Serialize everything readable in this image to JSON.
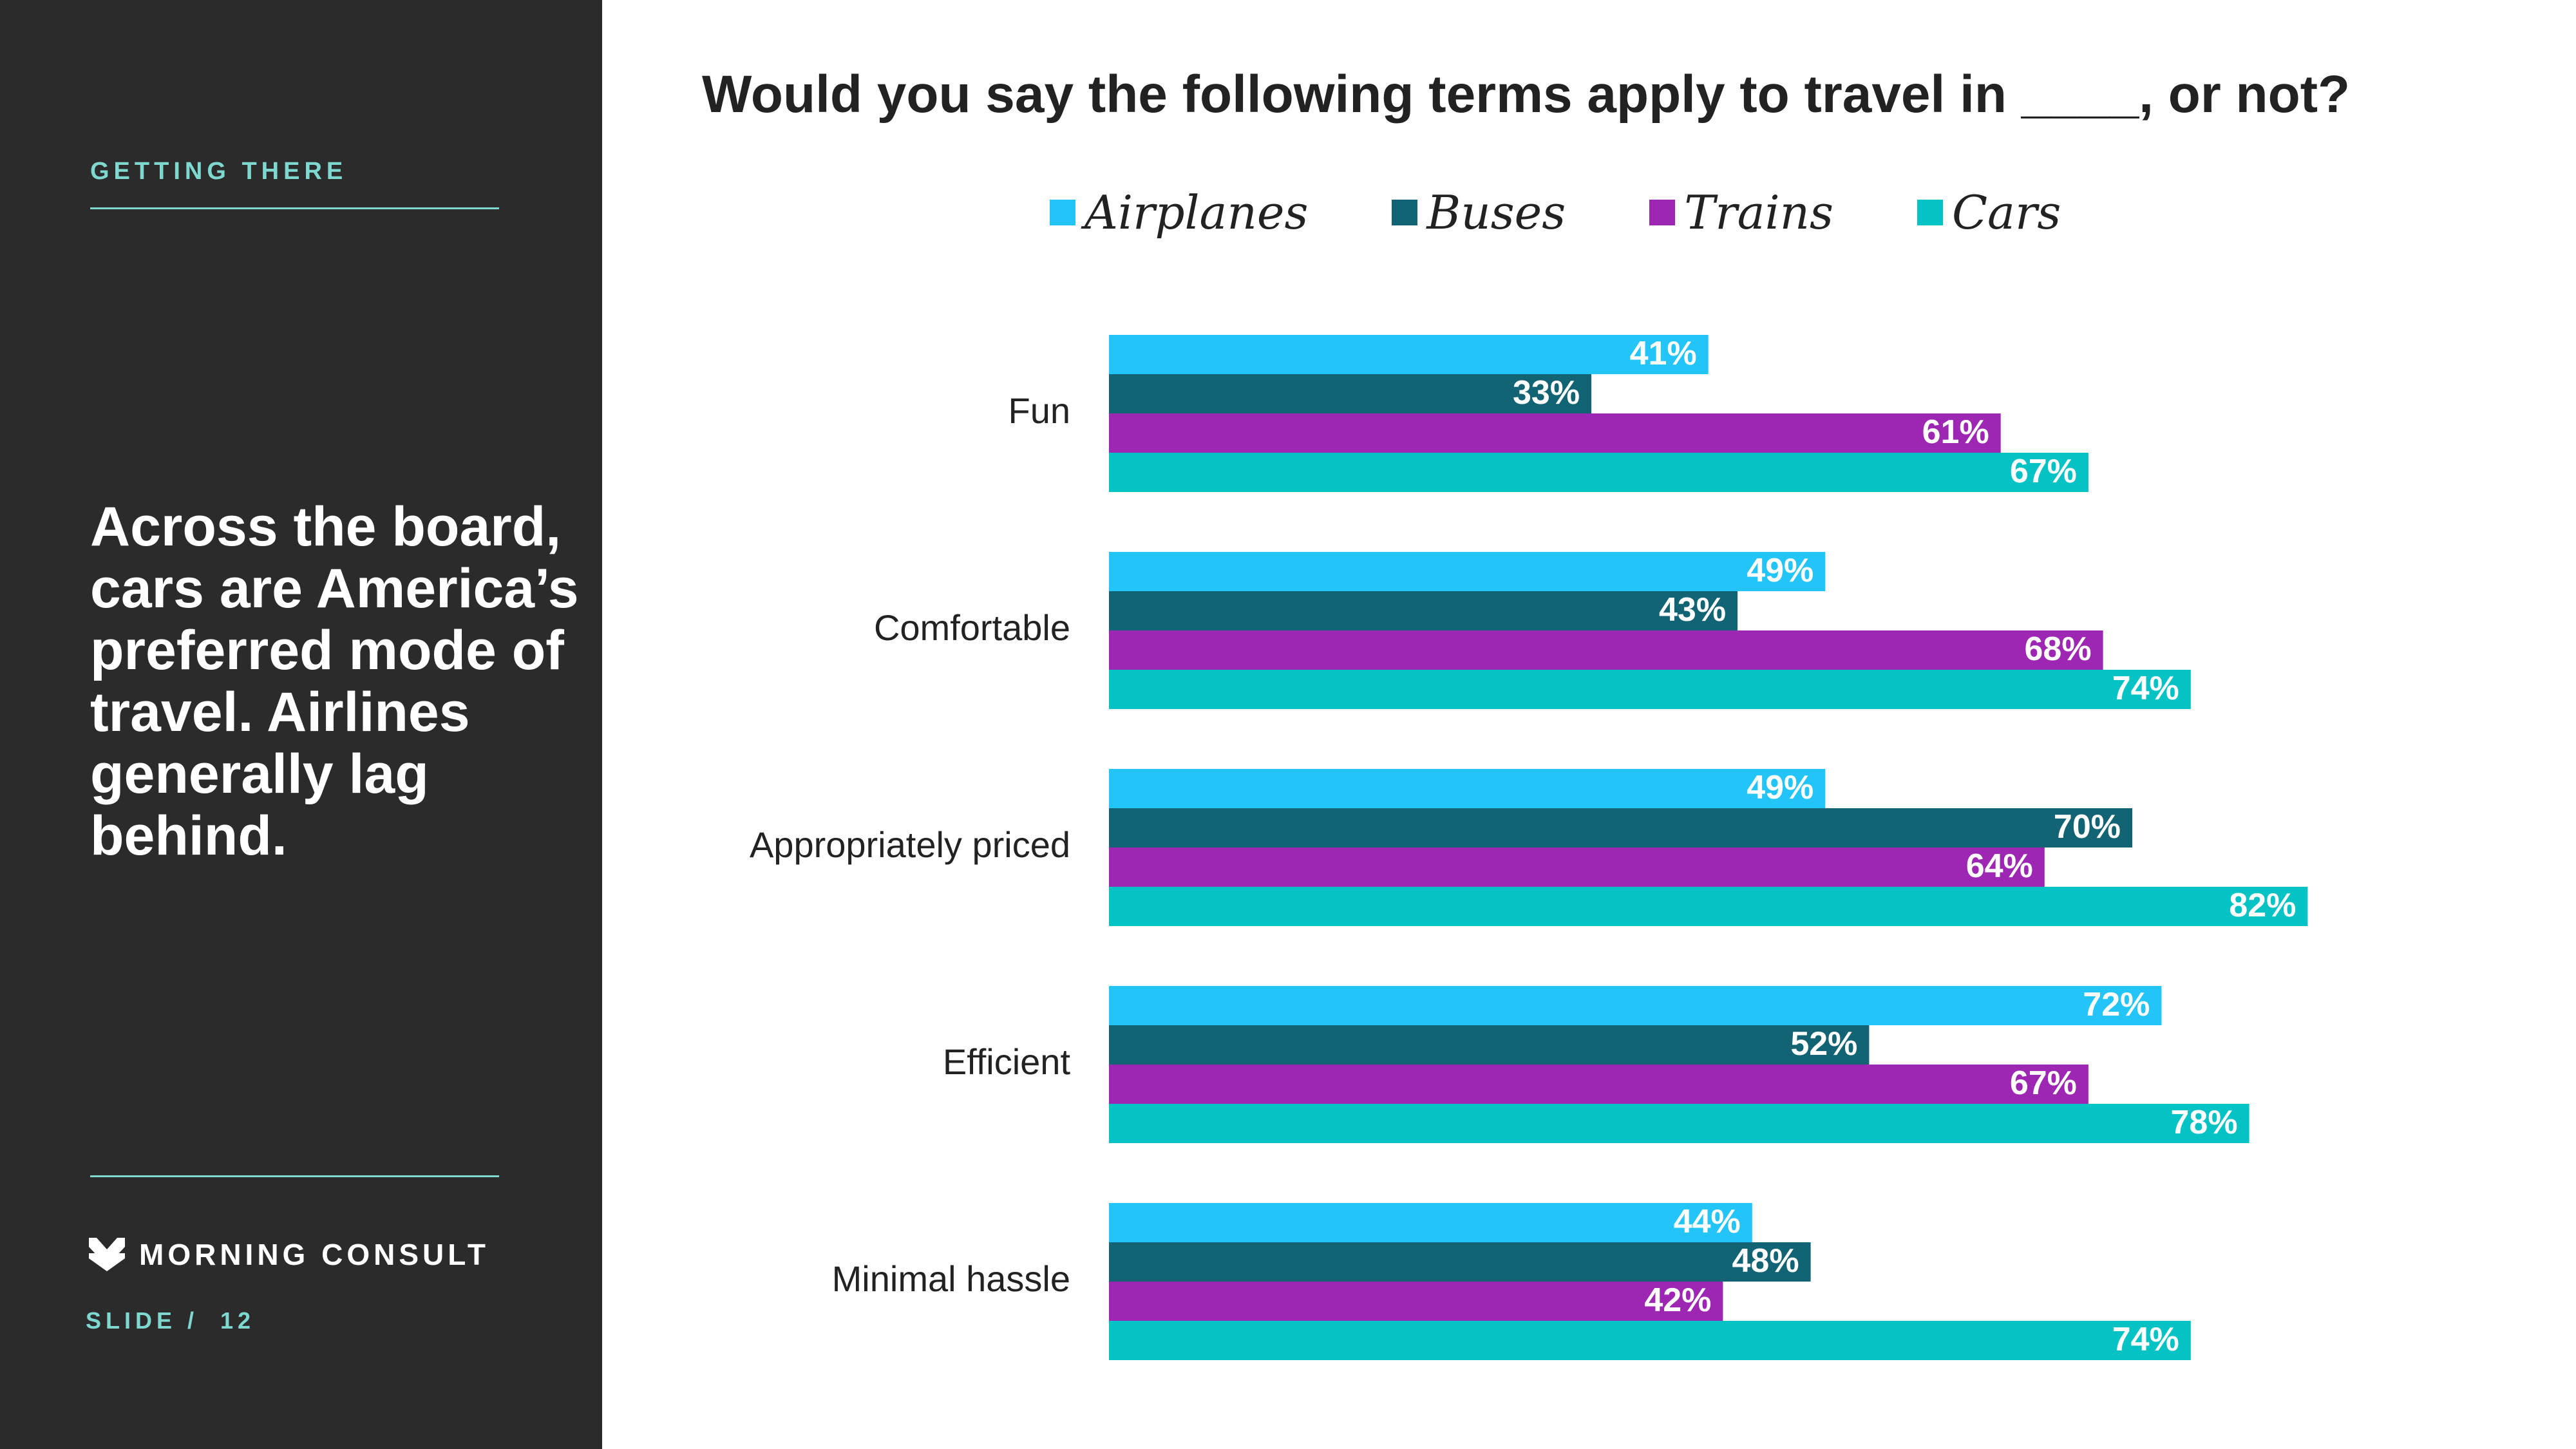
{
  "sidebar": {
    "section_label": "GETTING THERE",
    "headline": "Across the board, cars are America’s preferred mode of travel. Airlines generally lag behind.",
    "brand": "MORNING CONSULT",
    "slide_number": "SLIDE /  12"
  },
  "chart_data": {
    "type": "bar",
    "orientation": "horizontal",
    "title": "Would you say the following terms apply to travel in ____, or not?",
    "categories": [
      "Fun",
      "Comfortable",
      "Appropriately priced",
      "Efficient",
      "Minimal hassle"
    ],
    "series": [
      {
        "name": "Airplanes",
        "color": "#23c4f8",
        "values": [
          41,
          49,
          49,
          72,
          44
        ],
        "labels": [
          "41%",
          "49%",
          "49%",
          "72%",
          "44%"
        ]
      },
      {
        "name": "Buses",
        "color": "#126373",
        "values": [
          33,
          43,
          70,
          52,
          48
        ],
        "labels": [
          "33%",
          "43%",
          "70%",
          "52%",
          "48%"
        ]
      },
      {
        "name": "Trains",
        "color": "#9d27b3",
        "values": [
          61,
          68,
          64,
          67,
          42
        ],
        "labels": [
          "61%",
          "68%",
          "64%",
          "67%",
          "42%"
        ]
      },
      {
        "name": "Cars",
        "color": "#05c3c5",
        "values": [
          67,
          74,
          82,
          78,
          74
        ],
        "labels": [
          "67%",
          "74%",
          "82%",
          "78%",
          "74%"
        ]
      }
    ],
    "xlim": [
      0,
      100
    ],
    "grid": false,
    "legend": "top-center",
    "data_labels": "inside-end"
  }
}
